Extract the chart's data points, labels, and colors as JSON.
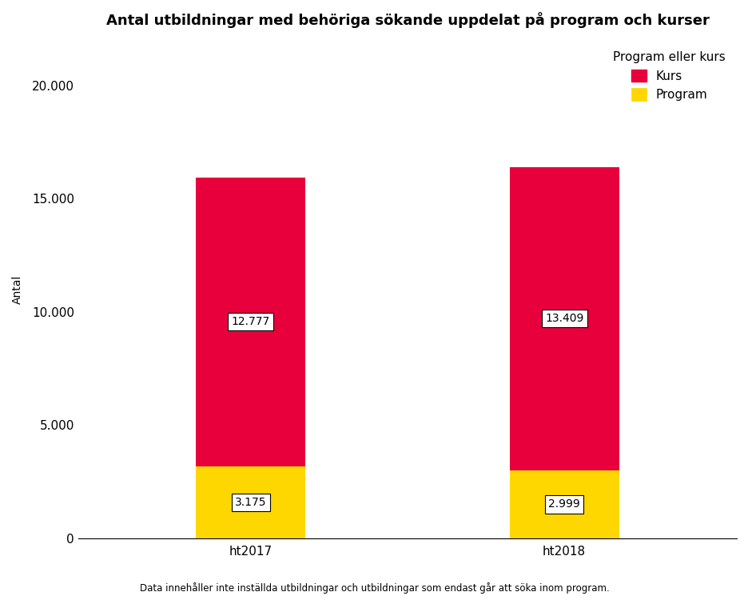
{
  "title": "Antal utbildningar med behöriga sökande uppdelat på program och kurser",
  "ylabel": "Antal",
  "categories": [
    "ht2017",
    "ht2018"
  ],
  "program_values": [
    3175,
    2999
  ],
  "kurs_values": [
    12777,
    13409
  ],
  "program_labels": [
    "3.175",
    "2.999"
  ],
  "kurs_labels": [
    "12.777",
    "13.409"
  ],
  "program_color": "#FFD700",
  "kurs_color": "#E8003D",
  "legend_title": "Program eller kurs",
  "ylim": [
    0,
    22000
  ],
  "yticks": [
    0,
    5000,
    10000,
    15000,
    20000
  ],
  "ytick_labels": [
    "0",
    "5.000",
    "10.000",
    "15.000",
    "20.000"
  ],
  "footnote": "Data innehåller inte inställda utbildningar och utbildningar som endast går att söka inom program.",
  "bar_width": 0.35,
  "background_color": "#ffffff",
  "label_fontsize": 10,
  "title_fontsize": 13,
  "tick_fontsize": 11,
  "annotation_fontsize": 10
}
